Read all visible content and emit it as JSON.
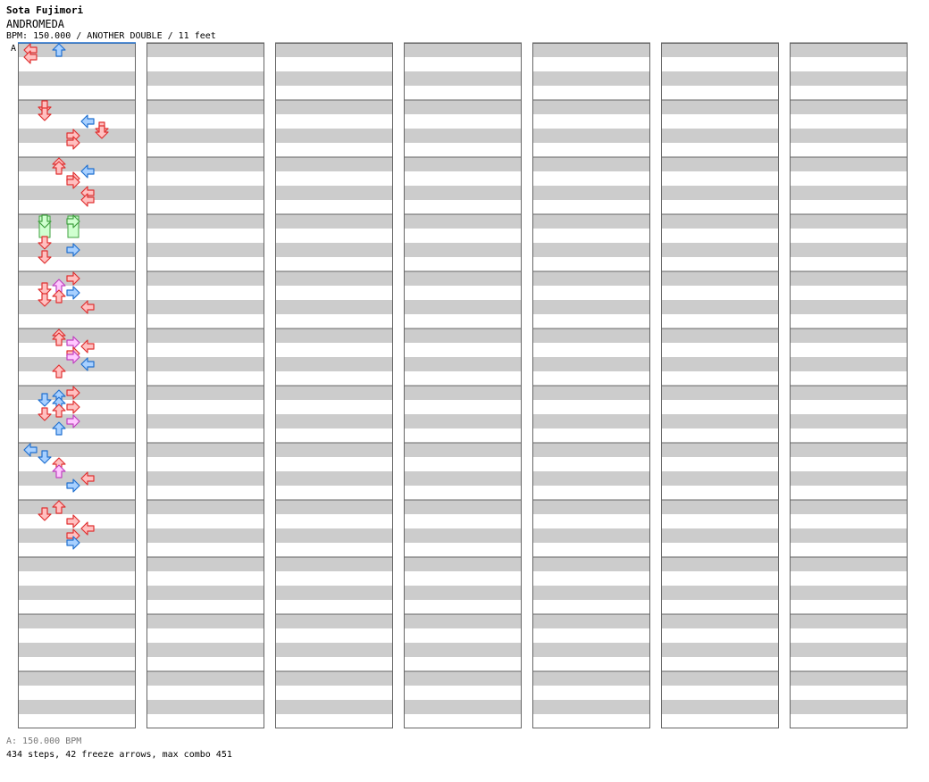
{
  "song": {
    "artist": "Sota Fujimori",
    "title": "ANDROMEDA",
    "info_line": "BPM: 150.000 / ANOTHER DOUBLE / 11 feet"
  },
  "bpm_marker": {
    "label": "A",
    "bpm_text": "A: 150.000 BPM"
  },
  "stats": {
    "summary": "434 steps, 42 freeze arrows, max combo 451",
    "steps": 434,
    "freeze_arrows": 42,
    "max_combo": 451
  },
  "colors": {
    "red_fill": "#ffc0c0",
    "red_stroke": "#e03030",
    "blue_fill": "#a8d0ff",
    "blue_stroke": "#2070d0",
    "pink_fill": "#ffc8ff",
    "pink_stroke": "#c040c0",
    "freeze_fill": "#d0ffd0",
    "freeze_stroke": "#40a040",
    "stripe": "#cccccc",
    "frame": "#666666"
  },
  "chart_data": {
    "type": "step-chart",
    "layout": {
      "columns": 7,
      "measures_per_column": 12,
      "lanes": 8,
      "panels": [
        "L",
        "D",
        "U",
        "R",
        "L",
        "D",
        "U",
        "R"
      ]
    },
    "notes": [
      {
        "measure": 0,
        "beat": 0.0,
        "lane": 0,
        "color": "red"
      },
      {
        "measure": 0,
        "beat": 0.5,
        "lane": 0,
        "color": "red"
      },
      {
        "measure": 0,
        "beat": 0.0,
        "lane": 2,
        "color": "blue"
      },
      {
        "measure": 1,
        "beat": 2.0,
        "lane": 3,
        "color": "red"
      },
      {
        "measure": 1,
        "beat": 2.5,
        "lane": 3,
        "color": "red"
      },
      {
        "measure": 1,
        "beat": 0.0,
        "lane": 1,
        "color": "red"
      },
      {
        "measure": 1,
        "beat": 0.5,
        "lane": 1,
        "color": "red"
      },
      {
        "measure": 1,
        "beat": 1.0,
        "lane": 4,
        "color": "blue"
      },
      {
        "measure": 1,
        "beat": 1.5,
        "lane": 5,
        "color": "red"
      },
      {
        "measure": 1,
        "beat": 1.75,
        "lane": 5,
        "color": "red"
      },
      {
        "measure": 2,
        "beat": 0.0,
        "lane": 2,
        "color": "red"
      },
      {
        "measure": 2,
        "beat": 0.25,
        "lane": 2,
        "color": "red"
      },
      {
        "measure": 2,
        "beat": 0.5,
        "lane": 4,
        "color": "blue"
      },
      {
        "measure": 2,
        "beat": 1.0,
        "lane": 3,
        "color": "red"
      },
      {
        "measure": 2,
        "beat": 1.25,
        "lane": 3,
        "color": "red"
      },
      {
        "measure": 2,
        "beat": 2.0,
        "lane": 4,
        "color": "red"
      },
      {
        "measure": 2,
        "beat": 2.5,
        "lane": 4,
        "color": "red"
      },
      {
        "measure": 3,
        "beat": 0.0,
        "lane": 1,
        "freeze_to": 0.75,
        "color": "freeze"
      },
      {
        "measure": 3,
        "beat": 0.0,
        "lane": 3,
        "freeze_to": 0.75,
        "color": "freeze"
      },
      {
        "measure": 3,
        "beat": 1.5,
        "lane": 1,
        "color": "red"
      },
      {
        "measure": 3,
        "beat": 2.0,
        "lane": 3,
        "color": "blue"
      },
      {
        "measure": 3,
        "beat": 2.5,
        "lane": 1,
        "color": "red"
      },
      {
        "measure": 4,
        "beat": 0.0,
        "lane": 3,
        "color": "red"
      },
      {
        "measure": 4,
        "beat": 0.5,
        "lane": 2,
        "color": "pink"
      },
      {
        "measure": 4,
        "beat": 0.75,
        "lane": 1,
        "color": "red"
      },
      {
        "measure": 4,
        "beat": 1.0,
        "lane": 3,
        "color": "blue"
      },
      {
        "measure": 4,
        "beat": 1.25,
        "lane": 2,
        "color": "red"
      },
      {
        "measure": 4,
        "beat": 1.5,
        "lane": 1,
        "color": "red"
      },
      {
        "measure": 4,
        "beat": 2.0,
        "lane": 4,
        "color": "red"
      },
      {
        "measure": 5,
        "beat": 0.0,
        "lane": 2,
        "color": "red"
      },
      {
        "measure": 5,
        "beat": 0.25,
        "lane": 2,
        "color": "red"
      },
      {
        "measure": 5,
        "beat": 0.5,
        "lane": 3,
        "color": "pink"
      },
      {
        "measure": 5,
        "beat": 0.75,
        "lane": 4,
        "color": "red"
      },
      {
        "measure": 5,
        "beat": 1.25,
        "lane": 3,
        "color": "red"
      },
      {
        "measure": 5,
        "beat": 1.5,
        "lane": 3,
        "color": "pink"
      },
      {
        "measure": 5,
        "beat": 2.0,
        "lane": 4,
        "color": "blue"
      },
      {
        "measure": 5,
        "beat": 2.5,
        "lane": 2,
        "color": "red"
      },
      {
        "measure": 6,
        "beat": 0.0,
        "lane": 3,
        "color": "red"
      },
      {
        "measure": 6,
        "beat": 0.25,
        "lane": 2,
        "color": "blue"
      },
      {
        "measure": 6,
        "beat": 0.5,
        "lane": 1,
        "color": "blue"
      },
      {
        "measure": 6,
        "beat": 0.75,
        "lane": 2,
        "color": "blue"
      },
      {
        "measure": 6,
        "beat": 1.0,
        "lane": 3,
        "color": "red"
      },
      {
        "measure": 6,
        "beat": 1.25,
        "lane": 2,
        "color": "red"
      },
      {
        "measure": 6,
        "beat": 1.5,
        "lane": 1,
        "color": "red"
      },
      {
        "measure": 6,
        "beat": 2.0,
        "lane": 3,
        "color": "pink"
      },
      {
        "measure": 6,
        "beat": 2.5,
        "lane": 2,
        "color": "blue"
      },
      {
        "measure": 7,
        "beat": 0.0,
        "lane": 0,
        "color": "blue"
      },
      {
        "measure": 7,
        "beat": 0.5,
        "lane": 1,
        "color": "blue"
      },
      {
        "measure": 7,
        "beat": 1.0,
        "lane": 2,
        "color": "red"
      },
      {
        "measure": 7,
        "beat": 1.5,
        "lane": 2,
        "color": "pink"
      },
      {
        "measure": 7,
        "beat": 2.0,
        "lane": 4,
        "color": "red"
      },
      {
        "measure": 7,
        "beat": 2.5,
        "lane": 3,
        "color": "blue"
      },
      {
        "measure": 8,
        "beat": 0.0,
        "lane": 2,
        "color": "red"
      },
      {
        "measure": 8,
        "beat": 0.5,
        "lane": 1,
        "color": "red"
      },
      {
        "measure": 8,
        "beat": 1.0,
        "lane": 3,
        "color": "red"
      },
      {
        "measure": 8,
        "beat": 1.5,
        "lane": 4,
        "color": "red"
      },
      {
        "measure": 8,
        "beat": 2.0,
        "lane": 3,
        "color": "red"
      },
      {
        "measure": 8,
        "beat": 2.5,
        "lane": 3,
        "color": "blue"
      }
    ]
  }
}
